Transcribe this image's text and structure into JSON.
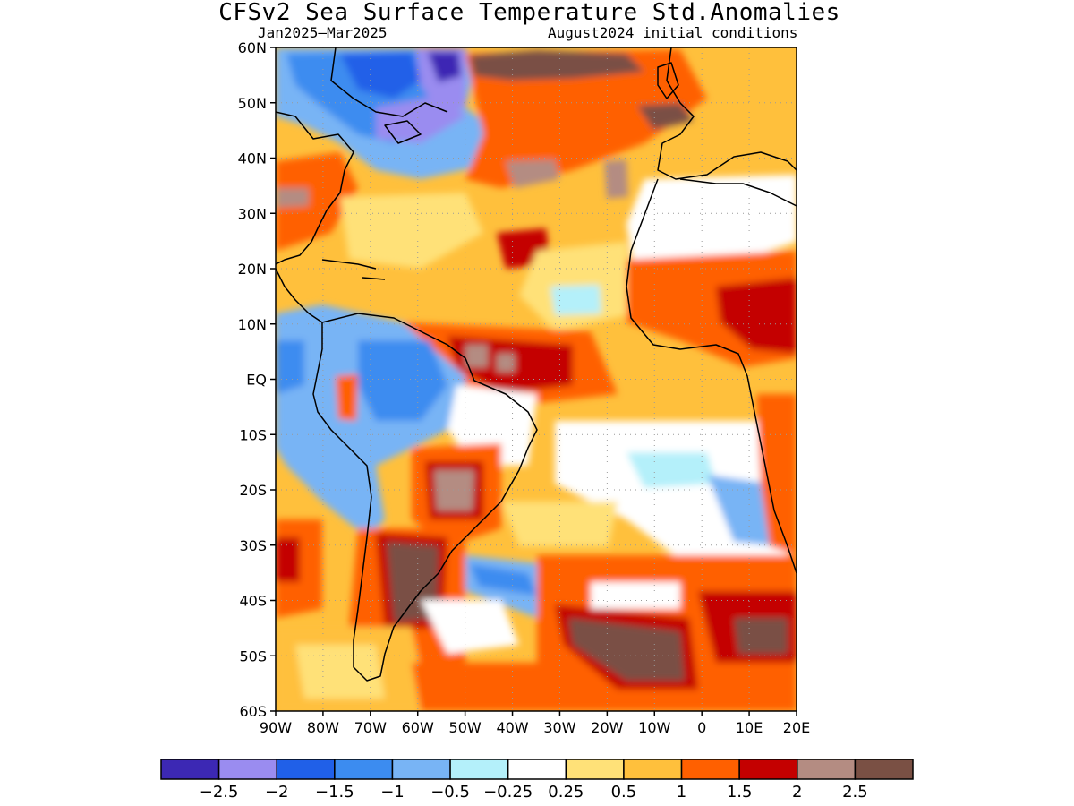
{
  "title": "CFSv2 Sea Surface Temperature Std.Anomalies",
  "subtitle_left": "Jan2025–Mar2025",
  "subtitle_right": "August2024 initial conditions",
  "map": {
    "lon_range": [
      -90,
      20
    ],
    "lat_range": [
      -60,
      60
    ],
    "lat_ticks": [
      {
        "value": 60,
        "label": "60N"
      },
      {
        "value": 50,
        "label": "50N"
      },
      {
        "value": 40,
        "label": "40N"
      },
      {
        "value": 30,
        "label": "30N"
      },
      {
        "value": 20,
        "label": "20N"
      },
      {
        "value": 10,
        "label": "10N"
      },
      {
        "value": 0,
        "label": "EQ"
      },
      {
        "value": -10,
        "label": "10S"
      },
      {
        "value": -20,
        "label": "20S"
      },
      {
        "value": -30,
        "label": "30S"
      },
      {
        "value": -40,
        "label": "40S"
      },
      {
        "value": -50,
        "label": "50S"
      },
      {
        "value": -60,
        "label": "60S"
      }
    ],
    "lon_ticks": [
      {
        "value": -90,
        "label": "90W"
      },
      {
        "value": -80,
        "label": "80W"
      },
      {
        "value": -70,
        "label": "70W"
      },
      {
        "value": -60,
        "label": "60W"
      },
      {
        "value": -50,
        "label": "50W"
      },
      {
        "value": -40,
        "label": "40W"
      },
      {
        "value": -30,
        "label": "30W"
      },
      {
        "value": -20,
        "label": "20W"
      },
      {
        "value": -10,
        "label": "10W"
      },
      {
        "value": 0,
        "label": "0"
      },
      {
        "value": 10,
        "label": "10E"
      },
      {
        "value": 20,
        "label": "20E"
      }
    ],
    "background_color": "#ffc03c"
  },
  "colorbar": {
    "colors": [
      "#3c28b4",
      "#9a8cf0",
      "#2060e8",
      "#3c8cf0",
      "#78b4f5",
      "#b4f0fa",
      "#ffffff",
      "#ffe178",
      "#ffc03c",
      "#ff6000",
      "#c40000",
      "#b48c82",
      "#7a5044"
    ],
    "labels": [
      "−2.5",
      "−2",
      "−1.5",
      "−1",
      "−0.5",
      "−0.25",
      "0.25",
      "0.5",
      "1",
      "1.5",
      "2",
      "2.5"
    ]
  }
}
